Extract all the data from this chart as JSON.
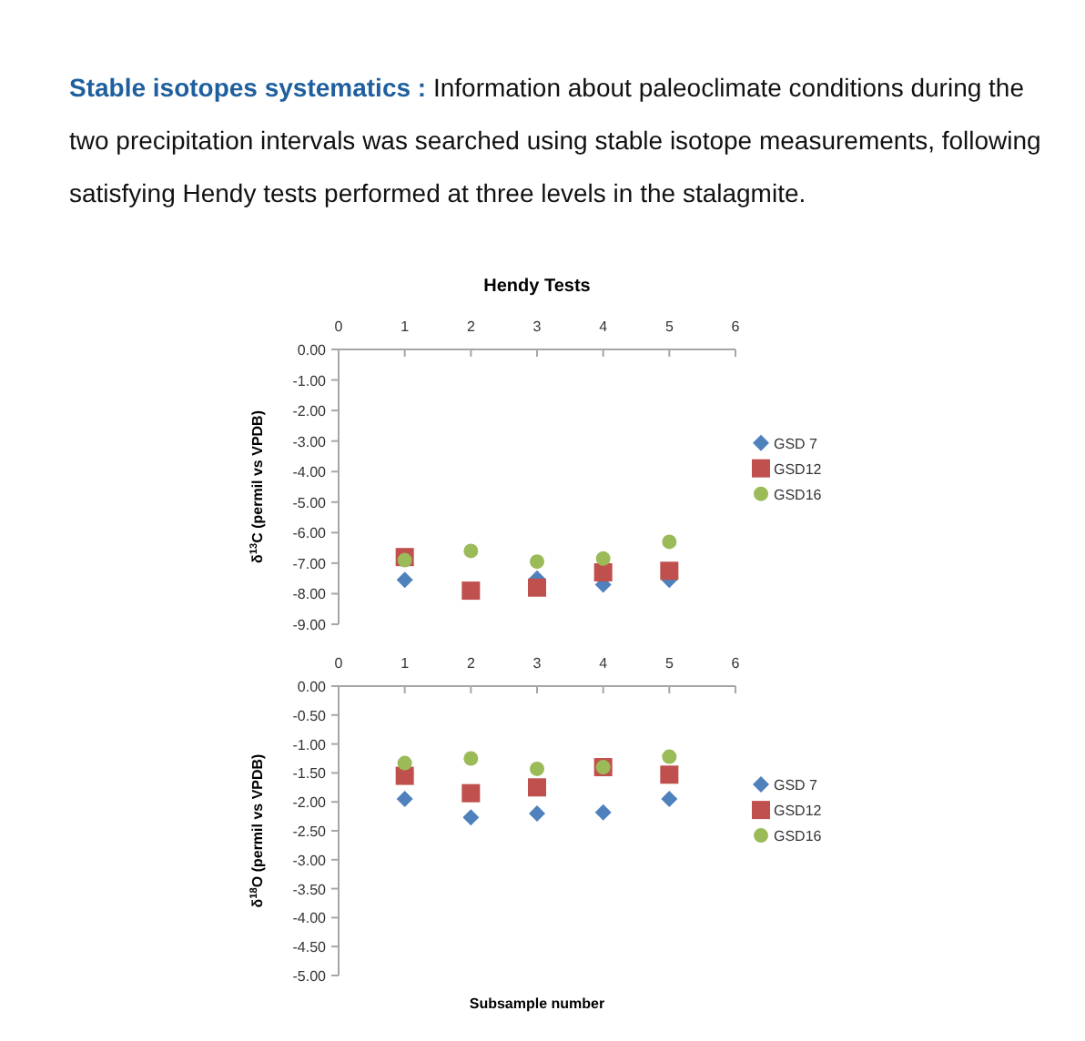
{
  "chart_data": [
    {
      "type": "scatter",
      "title": "Hendy Tests",
      "ylabel": "δ$^{13}$C  (permil vs VPDB)",
      "annotations": [
        "Stable isotopes systematics :",
        "Information about paleoclimate conditions during the two precipitation intervals was searched using stable isotope measurements, following satisfying Hendy tests performed at three levels in the stalagmite."
      ],
      "x": [
        1,
        2,
        3,
        4,
        5
      ],
      "xlim": [
        0,
        6
      ],
      "xticks": [
        0,
        1,
        2,
        3,
        4,
        5,
        6
      ],
      "ylim": [
        -9,
        0
      ],
      "yticks": [
        {
          "value": -9,
          "label": "-9.00"
        },
        {
          "value": -8,
          "label": "-8.00"
        },
        {
          "value": -7,
          "label": "-7.00"
        },
        {
          "value": -6,
          "label": "-6.00"
        },
        {
          "value": -5,
          "label": "-5.00"
        },
        {
          "value": -4,
          "label": "-4.00"
        },
        {
          "value": -3,
          "label": "-3.00"
        },
        {
          "value": -2,
          "label": "-2.00"
        },
        {
          "value": -1,
          "label": "-1.00"
        },
        {
          "value": 0,
          "label": "0.00"
        }
      ],
      "grid": false,
      "legend": "right",
      "series": [
        {
          "name": "GSD 7",
          "color": "#4f81bd",
          "marker": "diamond",
          "values": [
            -7.55,
            null,
            -7.5,
            -7.7,
            -7.55
          ]
        },
        {
          "name": "GSD12",
          "color": "#c0504d",
          "marker": "square",
          "values": [
            -6.8,
            -7.9,
            -7.8,
            -7.3,
            -7.25
          ]
        },
        {
          "name": "GSD16",
          "color": "#9bbb59",
          "marker": "circle",
          "values": [
            -6.9,
            -6.6,
            -6.95,
            -6.85,
            -6.3
          ]
        }
      ]
    },
    {
      "type": "scatter",
      "ylabel": "δ$^{18}$O  (permil vs VPDB)",
      "xlabel": "Subsample number",
      "x": [
        1,
        2,
        3,
        4,
        5
      ],
      "xlim": [
        0,
        6
      ],
      "xticks": [
        0,
        1,
        2,
        3,
        4,
        5,
        6
      ],
      "ylim": [
        -5,
        0
      ],
      "yticks": [
        {
          "value": -5,
          "label": "-5.00"
        },
        {
          "value": -4.5,
          "label": "-4.50"
        },
        {
          "value": -4,
          "label": "-4.00"
        },
        {
          "value": -3.5,
          "label": "-3.50"
        },
        {
          "value": -3,
          "label": "-3.00"
        },
        {
          "value": -2.5,
          "label": "-2.50"
        },
        {
          "value": -2,
          "label": "-2.00"
        },
        {
          "value": -1.5,
          "label": "-1.50"
        },
        {
          "value": -1,
          "label": "-1.00"
        },
        {
          "value": -0.5,
          "label": "-0.50"
        },
        {
          "value": 0,
          "label": "0.00"
        }
      ],
      "grid": false,
      "legend": "right",
      "series": [
        {
          "name": "GSD 7",
          "color": "#4f81bd",
          "marker": "diamond",
          "values": [
            -1.95,
            -2.27,
            -2.2,
            -2.18,
            -1.95
          ]
        },
        {
          "name": "GSD12",
          "color": "#c0504d",
          "marker": "square",
          "values": [
            -1.55,
            -1.85,
            -1.75,
            -1.4,
            -1.53
          ]
        },
        {
          "name": "GSD16",
          "color": "#9bbb59",
          "marker": "circle",
          "values": [
            -1.33,
            -1.25,
            -1.43,
            -1.4,
            -1.22
          ]
        }
      ]
    }
  ]
}
